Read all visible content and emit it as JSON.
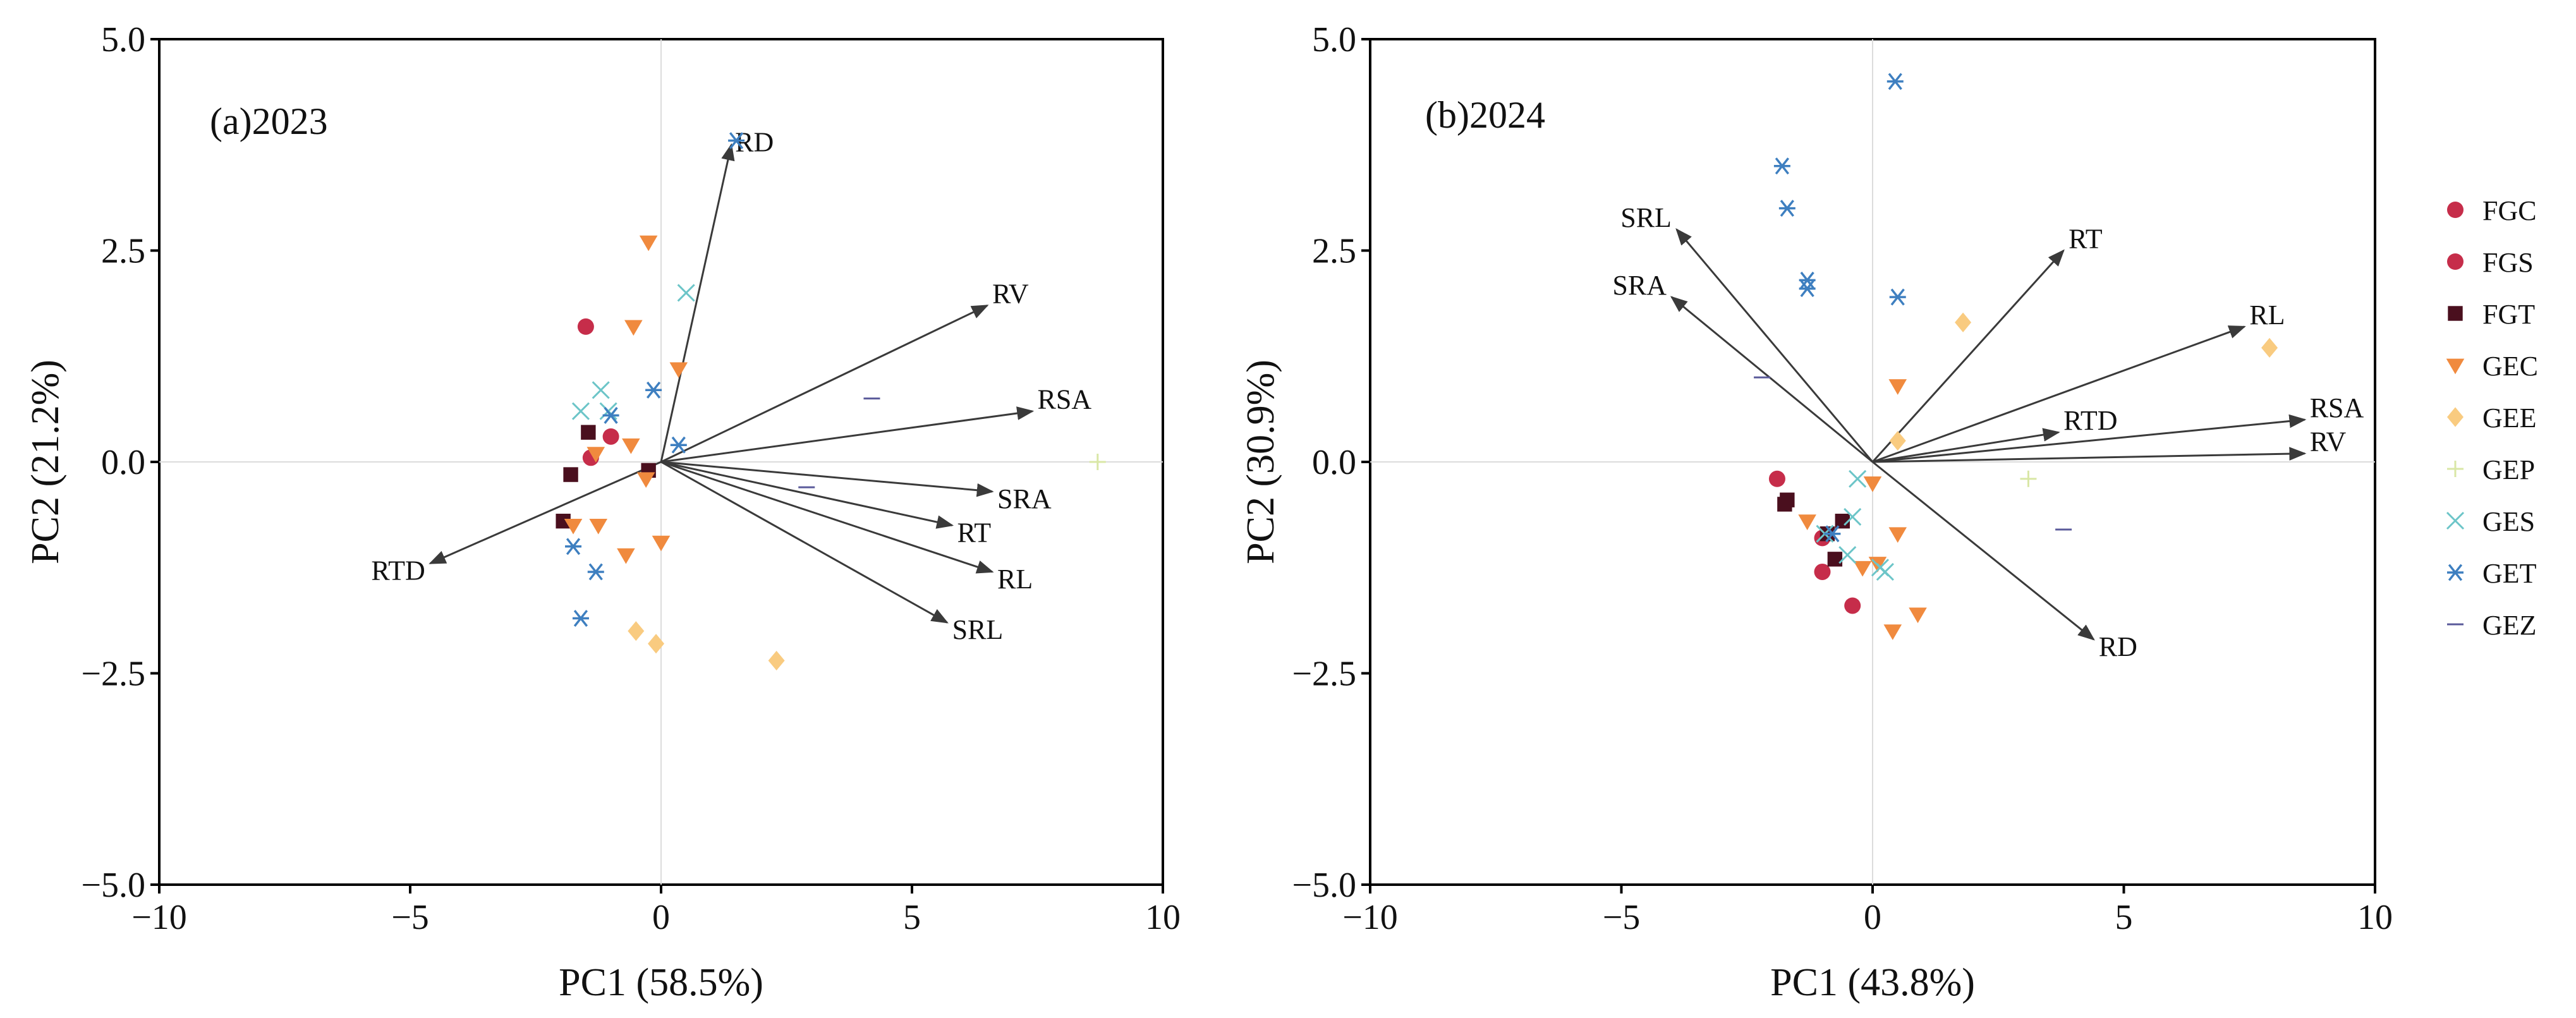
{
  "legend": [
    {
      "name": "FGC",
      "marker": "circle",
      "color": "#C62D4A"
    },
    {
      "name": "FGS",
      "marker": "circle",
      "color": "#C62D4A"
    },
    {
      "name": "FGT",
      "marker": "square",
      "color": "#4A0F1E"
    },
    {
      "name": "GEC",
      "marker": "triangle-down",
      "color": "#F08A3E"
    },
    {
      "name": "GEE",
      "marker": "diamond",
      "color": "#F9CB80"
    },
    {
      "name": "GEP",
      "marker": "plus",
      "color": "#D9E7A6"
    },
    {
      "name": "GES",
      "marker": "x",
      "color": "#6CC5C8"
    },
    {
      "name": "GET",
      "marker": "star",
      "color": "#3E7FC0"
    },
    {
      "name": "GEZ",
      "marker": "dash",
      "color": "#5A5A9A"
    }
  ],
  "chart_data": [
    {
      "type": "scatter",
      "title": "(a)2023",
      "xlabel": "PC1 (58.5%)",
      "ylabel": "PC2 (21.2%)",
      "xlim": [
        -10,
        10
      ],
      "ylim": [
        -5,
        5
      ],
      "xticks": [
        -10,
        -5,
        0,
        5,
        10
      ],
      "yticks": [
        -5,
        -2.5,
        0,
        2.5,
        5
      ],
      "xtick_labels": [
        "−10",
        "−5",
        "0",
        "5",
        "10"
      ],
      "ytick_labels": [
        "−5.0",
        "−2.5",
        "0.0",
        "2.5",
        "5.0"
      ],
      "vectors": [
        {
          "label": "RD",
          "x": 1.4,
          "y": 3.75
        },
        {
          "label": "RV",
          "x": 6.5,
          "y": 1.85
        },
        {
          "label": "RSA",
          "x": 7.4,
          "y": 0.6
        },
        {
          "label": "SRA",
          "x": 6.6,
          "y": -0.35
        },
        {
          "label": "RT",
          "x": 5.8,
          "y": -0.75
        },
        {
          "label": "RL",
          "x": 6.6,
          "y": -1.3
        },
        {
          "label": "SRL",
          "x": 5.7,
          "y": -1.9
        },
        {
          "label": "RTD",
          "x": -4.6,
          "y": -1.2
        }
      ],
      "points": [
        {
          "group": "FGC",
          "x": -1.5,
          "y": 1.6
        },
        {
          "group": "FGC",
          "x": -1.0,
          "y": 0.3
        },
        {
          "group": "FGS",
          "x": -1.4,
          "y": 0.05
        },
        {
          "group": "FGT",
          "x": -1.45,
          "y": 0.35
        },
        {
          "group": "FGT",
          "x": -1.8,
          "y": -0.15
        },
        {
          "group": "FGT",
          "x": -1.95,
          "y": -0.7
        },
        {
          "group": "FGT",
          "x": -0.25,
          "y": -0.1
        },
        {
          "group": "GEC",
          "x": -0.25,
          "y": 2.6
        },
        {
          "group": "GEC",
          "x": -0.55,
          "y": 1.6
        },
        {
          "group": "GEC",
          "x": 0.35,
          "y": 1.1
        },
        {
          "group": "GEC",
          "x": -0.6,
          "y": 0.2
        },
        {
          "group": "GEC",
          "x": -0.3,
          "y": -0.2
        },
        {
          "group": "GEC",
          "x": -1.3,
          "y": 0.1
        },
        {
          "group": "GEC",
          "x": -1.25,
          "y": -0.75
        },
        {
          "group": "GEC",
          "x": -1.75,
          "y": -0.75
        },
        {
          "group": "GEC",
          "x": -0.7,
          "y": -1.1
        },
        {
          "group": "GEC",
          "x": 0.0,
          "y": -0.95
        },
        {
          "group": "GEE",
          "x": -0.5,
          "y": -2.0
        },
        {
          "group": "GEE",
          "x": -0.1,
          "y": -2.15
        },
        {
          "group": "GEE",
          "x": 2.3,
          "y": -2.35
        },
        {
          "group": "GEP",
          "x": 8.7,
          "y": 0.0
        },
        {
          "group": "GES",
          "x": 0.5,
          "y": 2.0
        },
        {
          "group": "GES",
          "x": -1.2,
          "y": 0.85
        },
        {
          "group": "GES",
          "x": -1.6,
          "y": 0.6
        },
        {
          "group": "GES",
          "x": -1.05,
          "y": 0.6
        },
        {
          "group": "GET",
          "x": 1.5,
          "y": 3.8
        },
        {
          "group": "GET",
          "x": -0.15,
          "y": 0.85
        },
        {
          "group": "GET",
          "x": -1.0,
          "y": 0.55
        },
        {
          "group": "GET",
          "x": 0.35,
          "y": 0.2
        },
        {
          "group": "GET",
          "x": -1.75,
          "y": -1.0
        },
        {
          "group": "GET",
          "x": -1.3,
          "y": -1.3
        },
        {
          "group": "GET",
          "x": -1.6,
          "y": -1.85
        },
        {
          "group": "GEZ",
          "x": 4.2,
          "y": 0.75
        },
        {
          "group": "GEZ",
          "x": 2.9,
          "y": -0.3
        }
      ]
    },
    {
      "type": "scatter",
      "title": "(b)2024",
      "xlabel": "PC1 (43.8%)",
      "ylabel": "PC2 (30.9%)",
      "xlim": [
        -10,
        10
      ],
      "ylim": [
        -5,
        5
      ],
      "xticks": [
        -10,
        -5,
        0,
        5,
        10
      ],
      "yticks": [
        -5,
        -2.5,
        0,
        2.5,
        5
      ],
      "xtick_labels": [
        "−10",
        "−5",
        "0",
        "5",
        "10"
      ],
      "ytick_labels": [
        "−5.0",
        "−2.5",
        "0.0",
        "2.5",
        "5.0"
      ],
      "vectors": [
        {
          "label": "SRL",
          "x": -3.9,
          "y": 2.75
        },
        {
          "label": "SRA",
          "x": -4.0,
          "y": 1.95
        },
        {
          "label": "RT",
          "x": 3.8,
          "y": 2.5
        },
        {
          "label": "RL",
          "x": 7.4,
          "y": 1.6
        },
        {
          "label": "RTD",
          "x": 3.7,
          "y": 0.35
        },
        {
          "label": "RSA",
          "x": 8.6,
          "y": 0.5
        },
        {
          "label": "RV",
          "x": 8.6,
          "y": 0.1
        },
        {
          "label": "RD",
          "x": 4.4,
          "y": -2.1
        }
      ],
      "points": [
        {
          "group": "FGC",
          "x": -1.9,
          "y": -0.2
        },
        {
          "group": "FGC",
          "x": -1.0,
          "y": -0.9
        },
        {
          "group": "FGS",
          "x": -1.0,
          "y": -1.3
        },
        {
          "group": "FGS",
          "x": -0.4,
          "y": -1.7
        },
        {
          "group": "FGT",
          "x": -1.7,
          "y": -0.45
        },
        {
          "group": "FGT",
          "x": -1.75,
          "y": -0.5
        },
        {
          "group": "FGT",
          "x": -0.9,
          "y": -0.85
        },
        {
          "group": "FGT",
          "x": -0.6,
          "y": -0.7
        },
        {
          "group": "FGT",
          "x": -0.75,
          "y": -1.15
        },
        {
          "group": "GEC",
          "x": 0.5,
          "y": 0.9
        },
        {
          "group": "GEC",
          "x": 0.0,
          "y": -0.25
        },
        {
          "group": "GEC",
          "x": -1.3,
          "y": -0.7
        },
        {
          "group": "GEC",
          "x": 0.5,
          "y": -0.85
        },
        {
          "group": "GEC",
          "x": 0.1,
          "y": -1.2
        },
        {
          "group": "GEC",
          "x": -0.2,
          "y": -1.25
        },
        {
          "group": "GEC",
          "x": 0.4,
          "y": -2.0
        },
        {
          "group": "GEC",
          "x": 0.9,
          "y": -1.8
        },
        {
          "group": "GEE",
          "x": 1.8,
          "y": 1.65
        },
        {
          "group": "GEE",
          "x": 7.9,
          "y": 1.35
        },
        {
          "group": "GEE",
          "x": 0.5,
          "y": 0.25
        },
        {
          "group": "GEP",
          "x": 3.1,
          "y": -0.2
        },
        {
          "group": "GES",
          "x": -0.3,
          "y": -0.2
        },
        {
          "group": "GES",
          "x": -0.4,
          "y": -0.65
        },
        {
          "group": "GES",
          "x": -0.95,
          "y": -0.85
        },
        {
          "group": "GES",
          "x": -0.5,
          "y": -1.1
        },
        {
          "group": "GES",
          "x": 0.15,
          "y": -1.25
        },
        {
          "group": "GES",
          "x": 0.25,
          "y": -1.3
        },
        {
          "group": "GET",
          "x": 0.45,
          "y": 4.5
        },
        {
          "group": "GET",
          "x": -1.8,
          "y": 3.5
        },
        {
          "group": "GET",
          "x": -1.7,
          "y": 3.0
        },
        {
          "group": "GET",
          "x": -1.3,
          "y": 2.15
        },
        {
          "group": "GET",
          "x": -1.3,
          "y": 2.05
        },
        {
          "group": "GET",
          "x": 0.5,
          "y": 1.95
        },
        {
          "group": "GET",
          "x": -0.8,
          "y": -0.85
        },
        {
          "group": "GEZ",
          "x": -2.2,
          "y": 1.0
        },
        {
          "group": "GEZ",
          "x": 3.8,
          "y": -0.8
        }
      ]
    }
  ]
}
